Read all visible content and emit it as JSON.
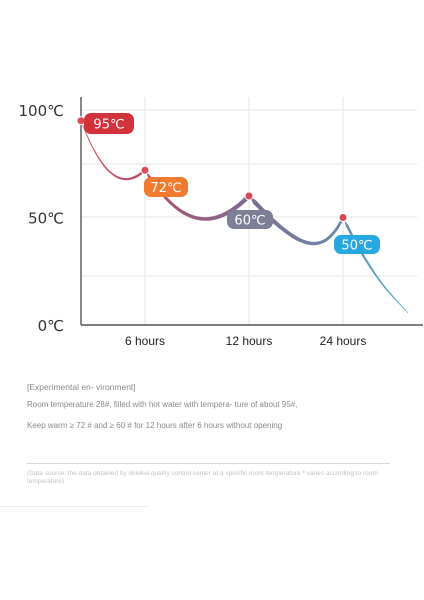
{
  "chart_data": {
    "type": "line",
    "title": "",
    "xlabel": "",
    "ylabel": "",
    "x": [
      "0",
      "6 hours",
      "12 hours",
      "24 hours"
    ],
    "y": [
      95,
      72,
      60,
      50
    ],
    "ylim": [
      0,
      100
    ],
    "yticks": [
      "100℃",
      "50℃",
      "0℃"
    ],
    "xticks": [
      "6 hours",
      "12 hours",
      "24 hours"
    ],
    "point_labels": [
      "95℃",
      "72℃",
      "60℃",
      "50℃"
    ],
    "badge_colors": [
      "#d1323c",
      "#f07a30",
      "#7c7f95",
      "#28a8e0"
    ],
    "grid": true
  },
  "notes": {
    "environment": "[Experimental en- vironment]",
    "description": "Room temperature 28#, filled with hot water with tempera- ture of about 95#,",
    "keep_warm": "Keep warm ≥ 72 # and ≥ 60 # for 12 hours after 6 hours without opening",
    "source": "(Data source: the data obtained by delekei quality control center at a specific room temperature * varies according to room temperature)"
  }
}
